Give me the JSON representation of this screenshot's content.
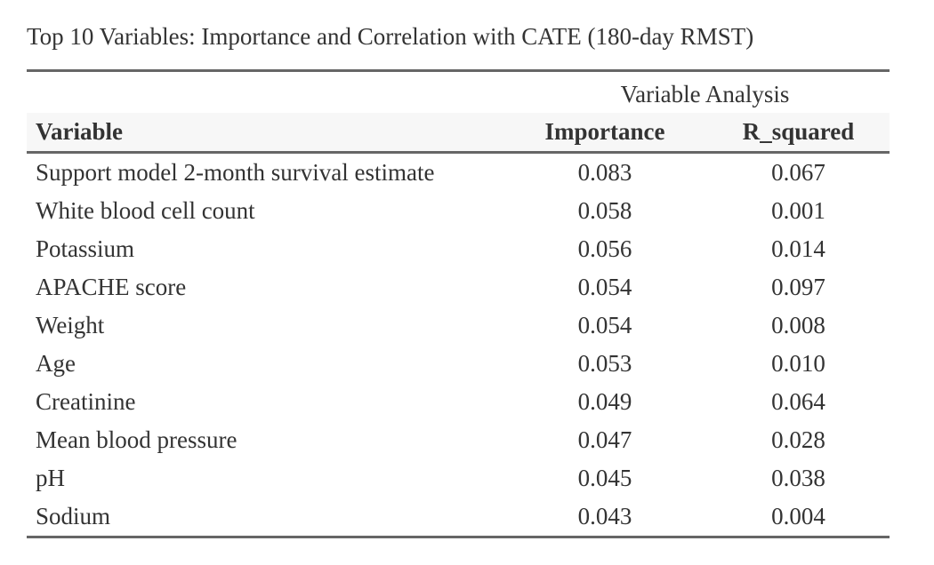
{
  "title": "Top 10 Variables: Importance and Correlation with CATE (180-day RMST)",
  "spanner": "Variable Analysis",
  "columns": {
    "variable": "Variable",
    "importance": "Importance",
    "r_squared": "R_squared"
  },
  "rows": [
    {
      "variable": "Support model 2-month survival estimate",
      "importance": "0.083",
      "r_squared": "0.067"
    },
    {
      "variable": "White blood cell count",
      "importance": "0.058",
      "r_squared": "0.001"
    },
    {
      "variable": "Potassium",
      "importance": "0.056",
      "r_squared": "0.014"
    },
    {
      "variable": "APACHE score",
      "importance": "0.054",
      "r_squared": "0.097"
    },
    {
      "variable": "Weight",
      "importance": "0.054",
      "r_squared": "0.008"
    },
    {
      "variable": "Age",
      "importance": "0.053",
      "r_squared": "0.010"
    },
    {
      "variable": "Creatinine",
      "importance": "0.049",
      "r_squared": "0.064"
    },
    {
      "variable": "Mean blood pressure",
      "importance": "0.047",
      "r_squared": "0.028"
    },
    {
      "variable": "pH",
      "importance": "0.045",
      "r_squared": "0.038"
    },
    {
      "variable": "Sodium",
      "importance": "0.043",
      "r_squared": "0.004"
    }
  ]
}
